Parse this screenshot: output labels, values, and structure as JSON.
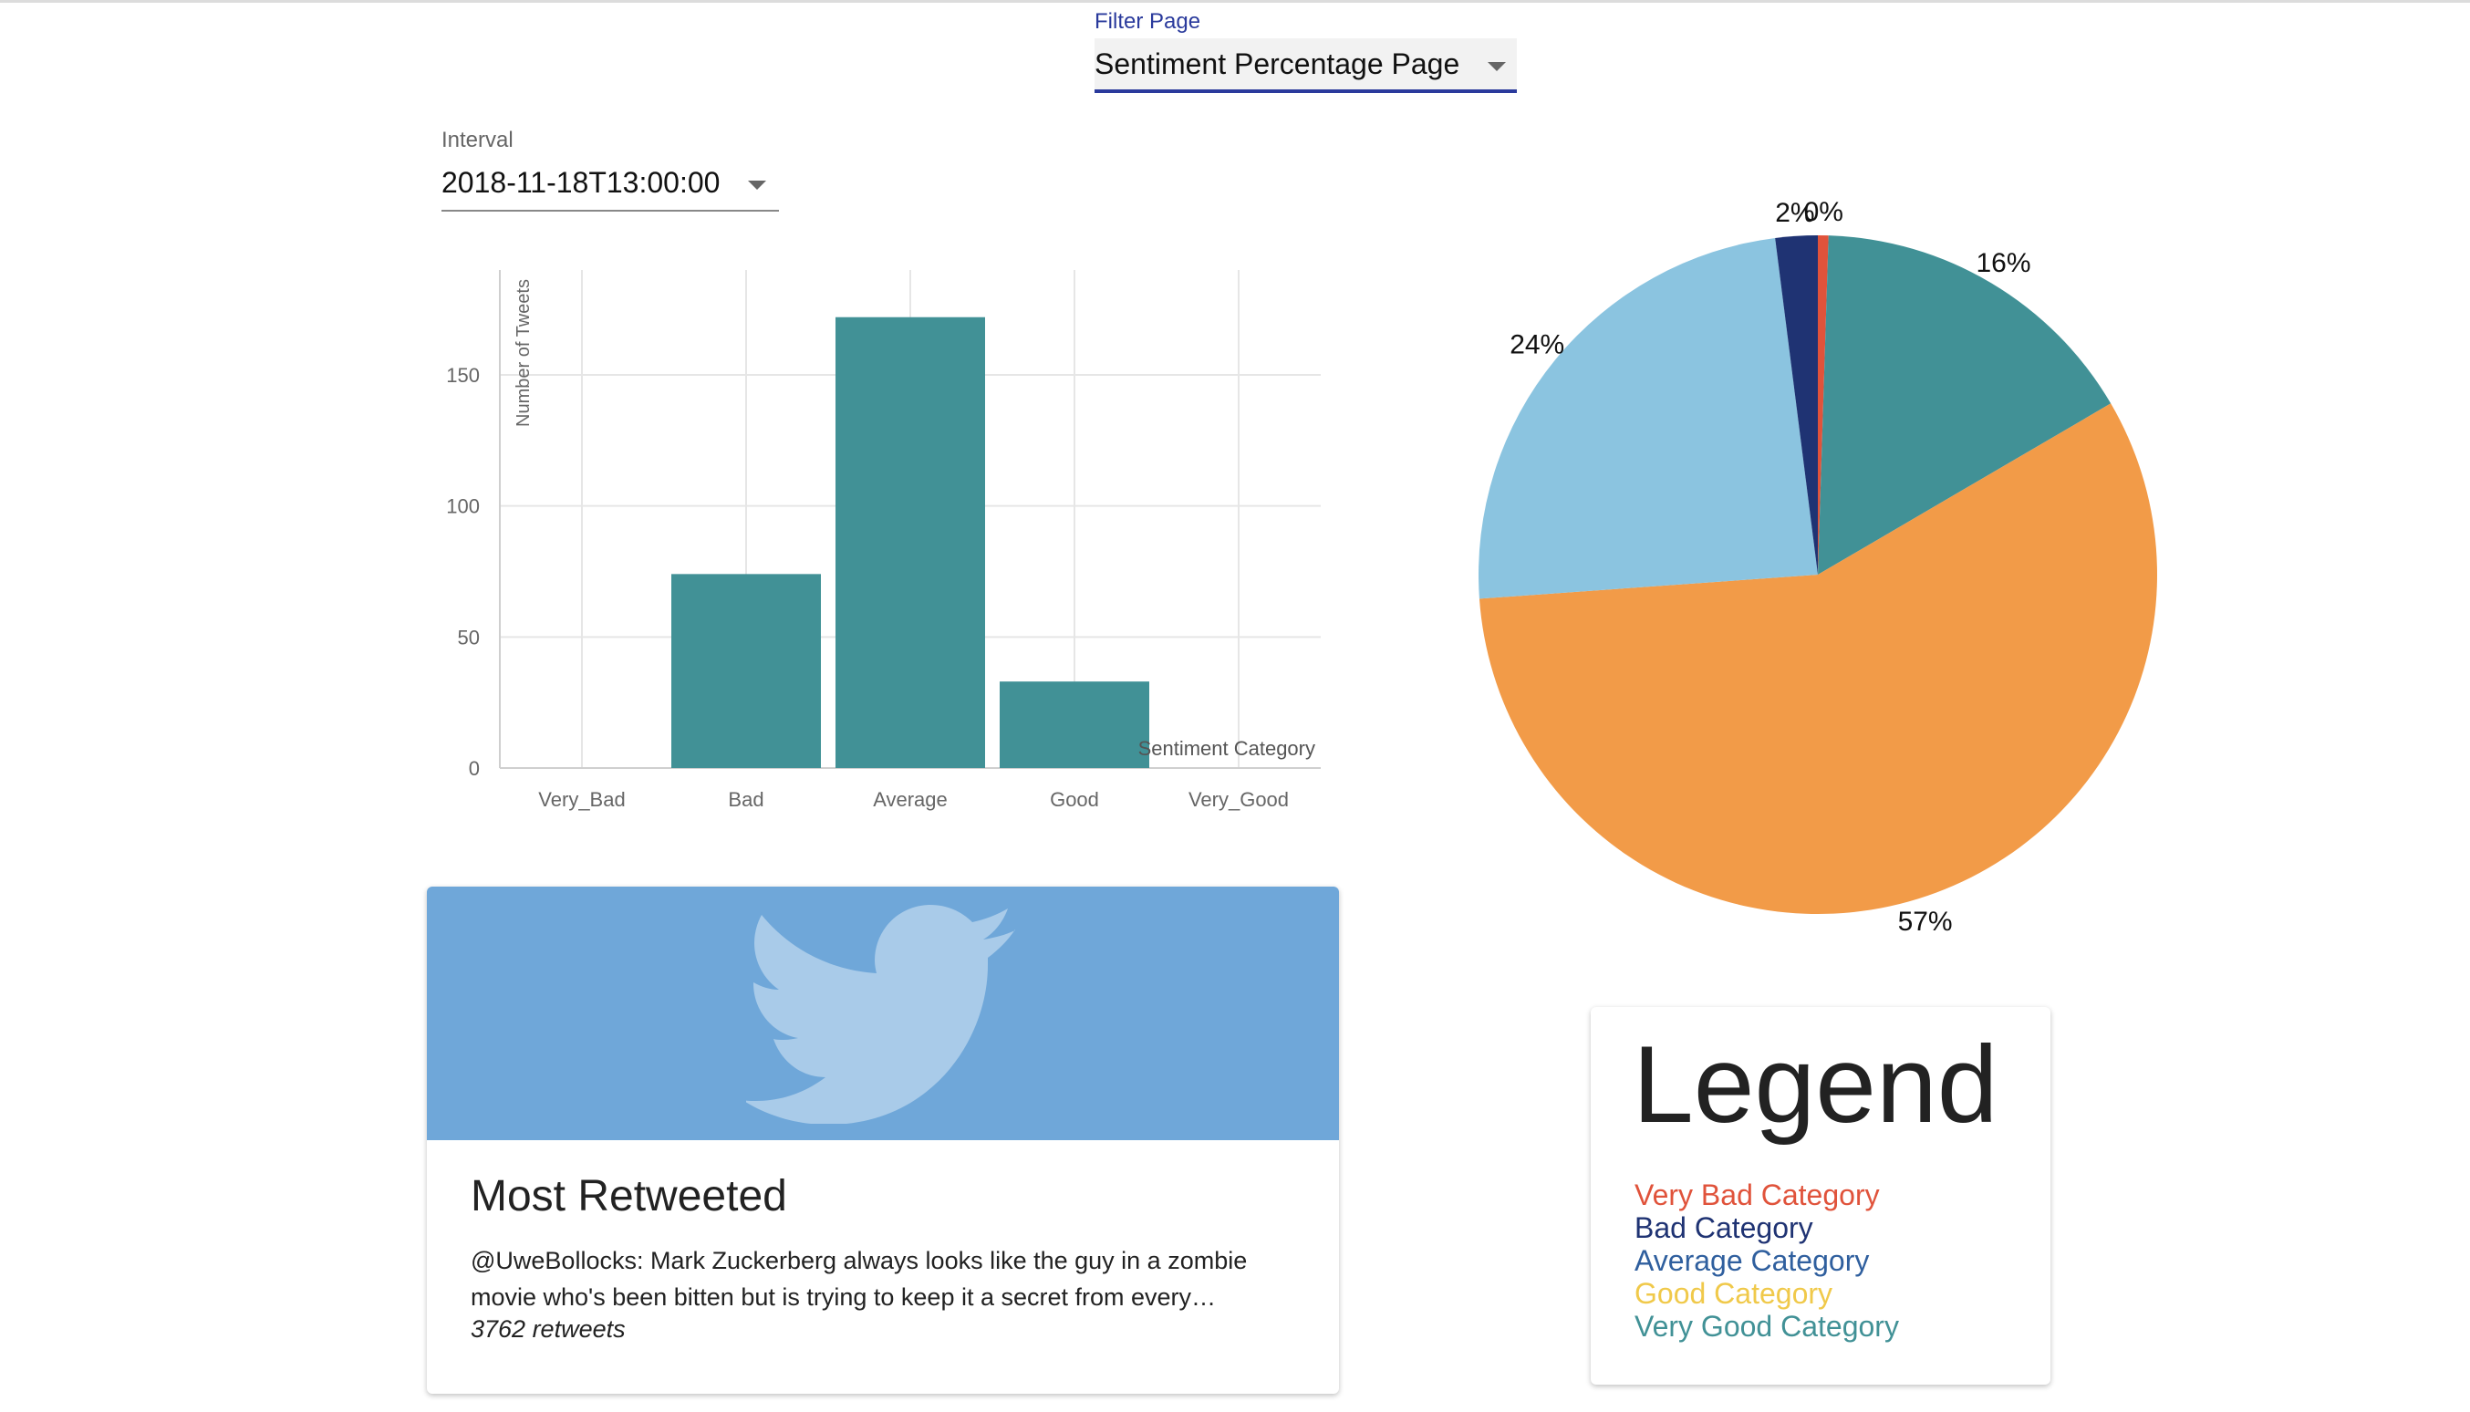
{
  "filter": {
    "label": "Filter Page",
    "value": "Sentiment Percentage Page"
  },
  "interval": {
    "label": "Interval",
    "value": "2018-11-18T13:00:00"
  },
  "chart_data": [
    {
      "type": "bar",
      "categories": [
        "Very_Bad",
        "Bad",
        "Average",
        "Good",
        "Very_Good"
      ],
      "values": [
        0,
        74,
        172,
        33,
        0
      ],
      "xlabel": "Sentiment Category",
      "ylabel": "Number of Tweets",
      "ylim": [
        0,
        190
      ],
      "yticks": [
        0,
        50,
        100,
        150
      ],
      "grid": true,
      "bar_color": "#419196"
    },
    {
      "type": "pie",
      "slices": [
        {
          "label": "Very Bad",
          "value": 0.5,
          "display": "0%",
          "color": "#e0533b"
        },
        {
          "label": "Very Good",
          "value": 16,
          "display": "16%",
          "color": "#419196"
        },
        {
          "label": "Good",
          "value": 57,
          "display": "57%",
          "color": "#f29b48"
        },
        {
          "label": "Average",
          "value": 24,
          "display": "24%",
          "color": "#8bc4e0"
        },
        {
          "label": "Bad",
          "value": 2,
          "display": "2%",
          "color": "#1f3373"
        }
      ]
    }
  ],
  "card": {
    "title": "Most Retweeted",
    "text": "@UweBollocks: Mark Zuckerberg always looks like the guy in a zombie movie who's been bitten but is trying to keep it a secret from every…",
    "retweets": "3762 retweets",
    "media_icon": "twitter-bird-icon"
  },
  "legend": {
    "title": "Legend",
    "items": [
      {
        "label": "Very Bad Category",
        "color": "#e0533b"
      },
      {
        "label": "Bad Category",
        "color": "#1f3373"
      },
      {
        "label": "Average Category",
        "color": "#2f5f9e"
      },
      {
        "label": "Good Category",
        "color": "#f0c94a"
      },
      {
        "label": "Very Good Category",
        "color": "#419196"
      }
    ]
  }
}
